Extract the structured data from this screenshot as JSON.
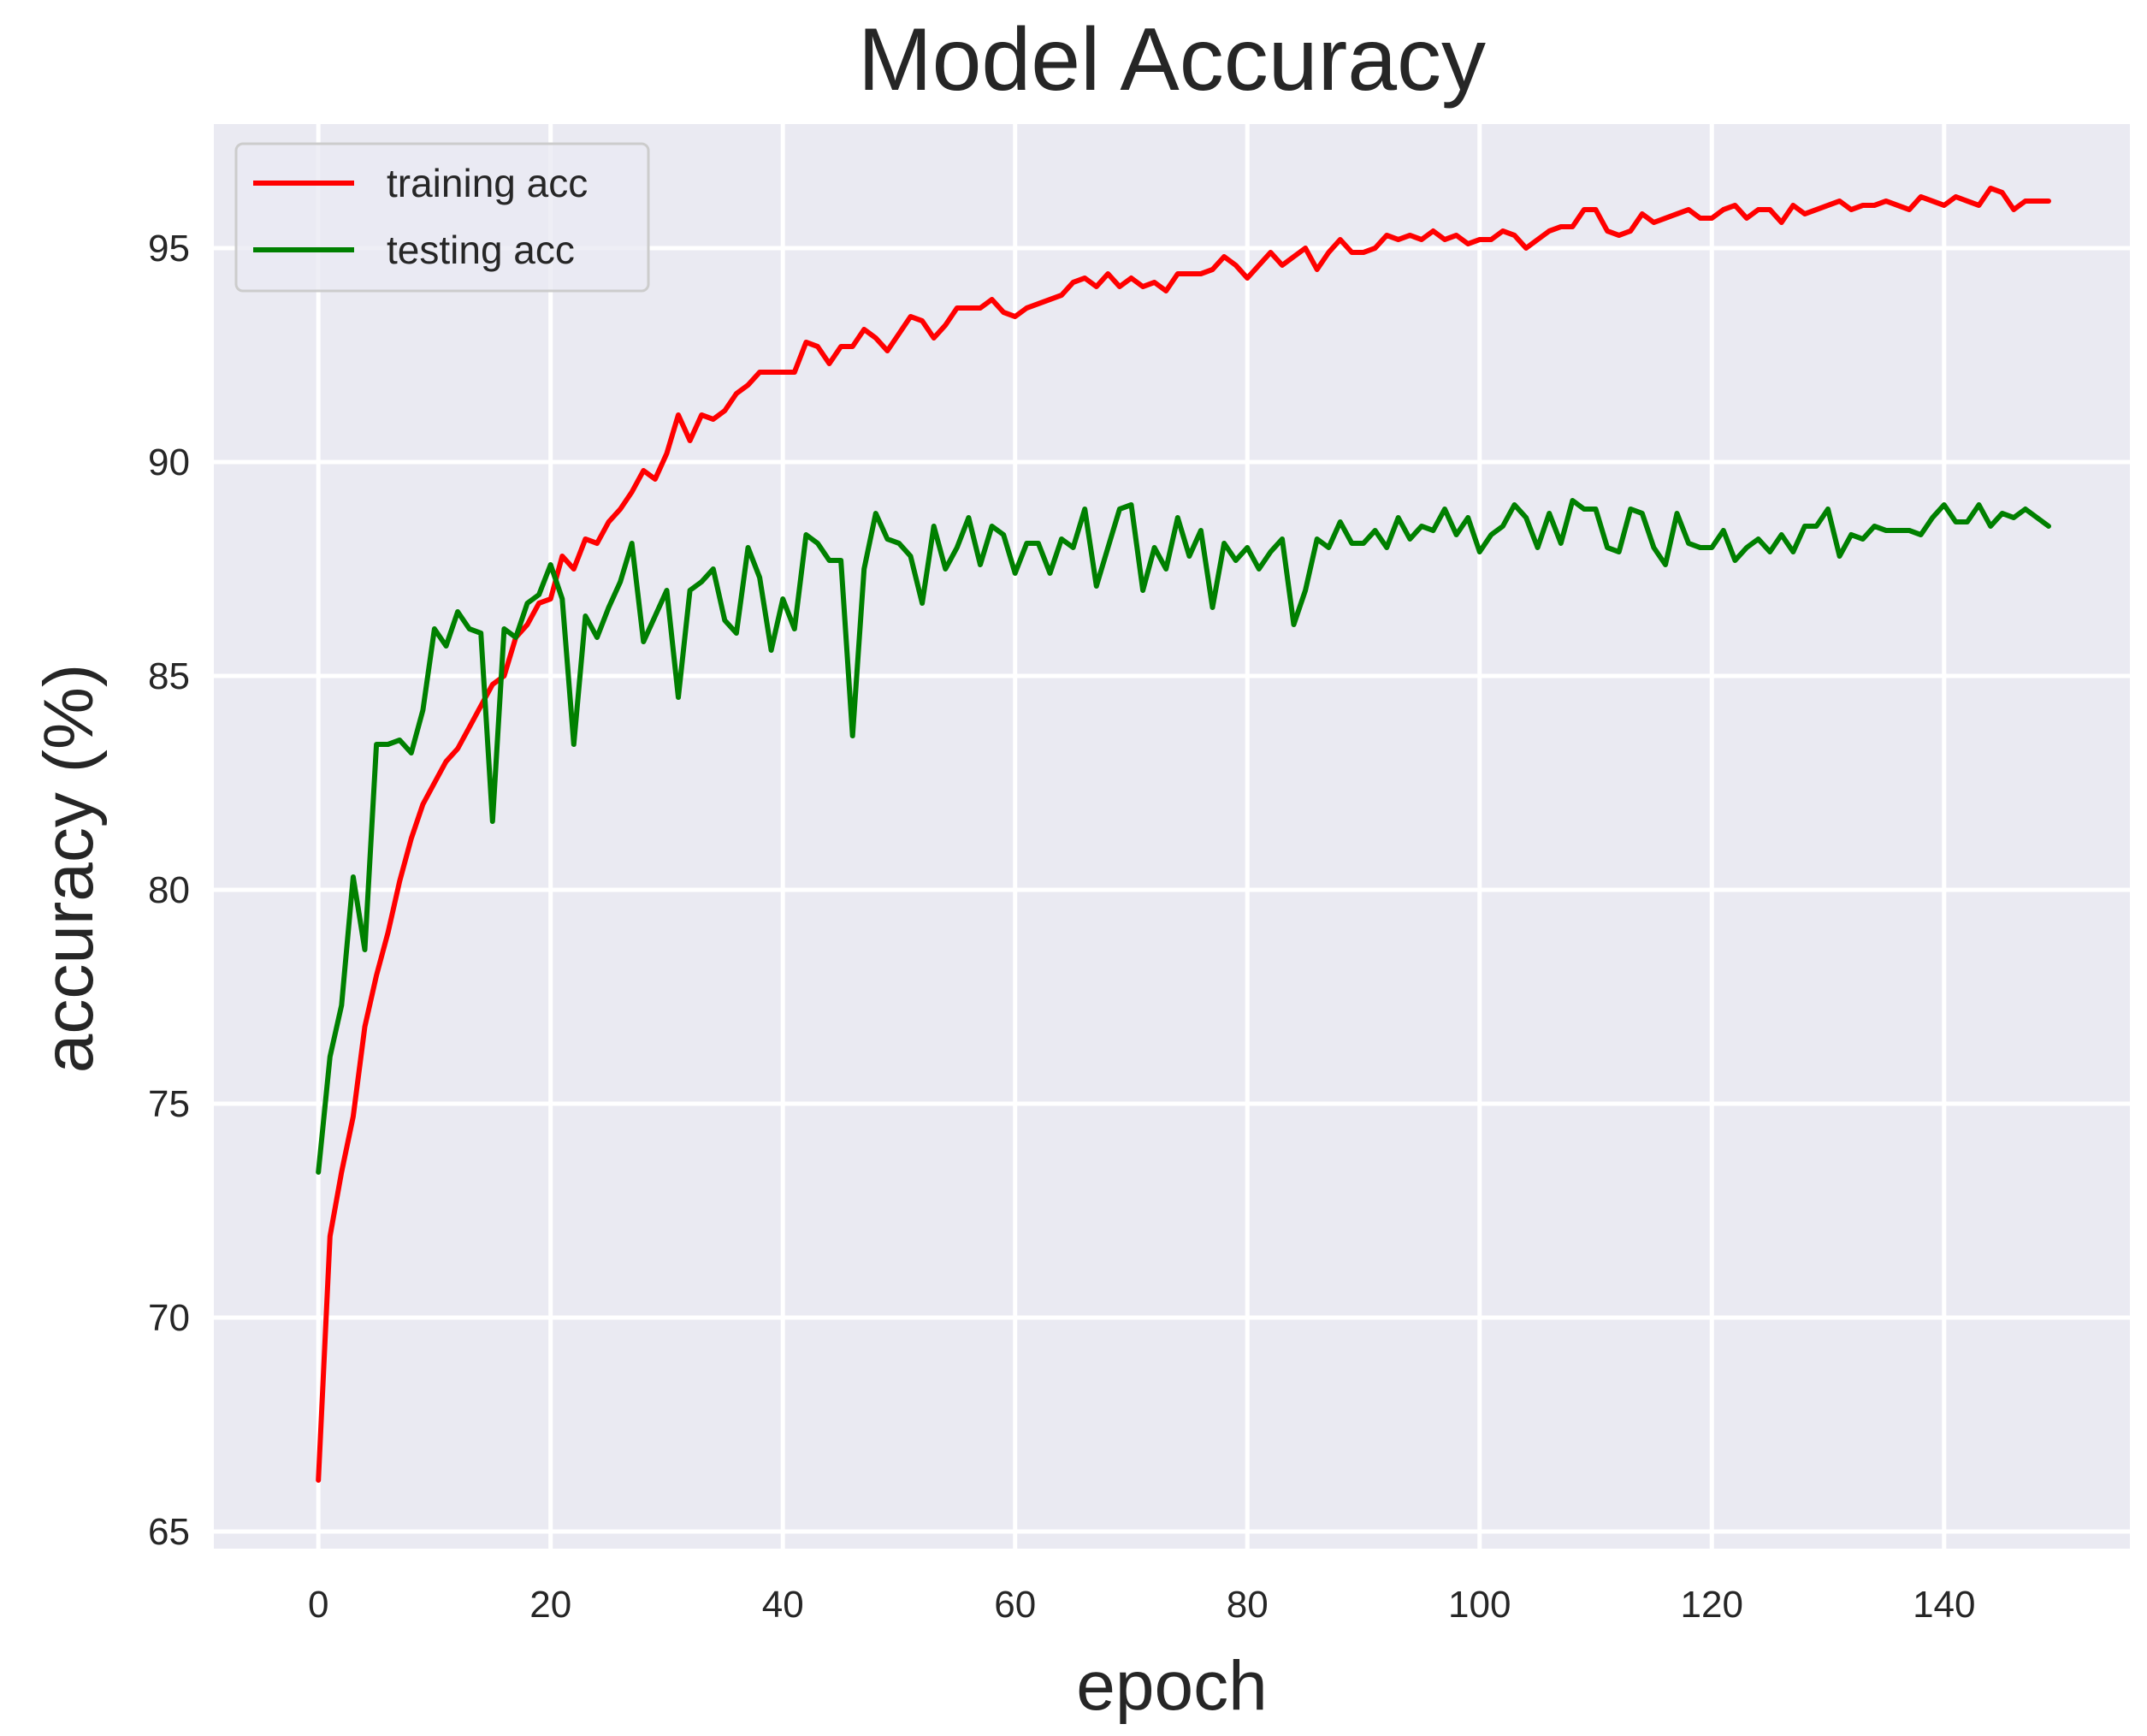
{
  "chart_data": {
    "type": "line",
    "title": "Model Accuracy",
    "xlabel": "epoch",
    "ylabel": "accuracy (%)",
    "xlim": [
      -9,
      156
    ],
    "ylim": [
      64.6,
      97.9
    ],
    "xticks": [
      0,
      20,
      40,
      60,
      80,
      100,
      120,
      140
    ],
    "yticks": [
      65,
      70,
      75,
      80,
      85,
      90,
      95
    ],
    "grid": true,
    "background": "#eaeaf2",
    "legend_position": "upper-left",
    "x": [
      0,
      1,
      2,
      3,
      4,
      5,
      6,
      7,
      8,
      9,
      10,
      11,
      12,
      13,
      14,
      15,
      16,
      17,
      18,
      19,
      20,
      21,
      22,
      23,
      24,
      25,
      26,
      27,
      28,
      29,
      30,
      31,
      32,
      33,
      34,
      35,
      36,
      37,
      38,
      39,
      40,
      41,
      42,
      43,
      44,
      45,
      46,
      47,
      48,
      49,
      50,
      51,
      52,
      53,
      54,
      55,
      56,
      57,
      58,
      59,
      60,
      61,
      62,
      63,
      64,
      65,
      66,
      67,
      68,
      69,
      70,
      71,
      72,
      73,
      74,
      75,
      76,
      77,
      78,
      79,
      80,
      81,
      82,
      83,
      84,
      85,
      86,
      87,
      88,
      89,
      90,
      91,
      92,
      93,
      94,
      95,
      96,
      97,
      98,
      99,
      100,
      101,
      102,
      103,
      104,
      105,
      106,
      107,
      108,
      109,
      110,
      111,
      112,
      113,
      114,
      115,
      116,
      117,
      118,
      119,
      120,
      121,
      122,
      123,
      124,
      125,
      126,
      127,
      128,
      129,
      130,
      131,
      132,
      133,
      134,
      135,
      136,
      137,
      138,
      139,
      140,
      141,
      142,
      143,
      144,
      145,
      146,
      147,
      148,
      149
    ],
    "series": [
      {
        "name": "training acc",
        "color": "#ff0000",
        "values": [
          66.2,
          71.9,
          73.4,
          74.7,
          76.8,
          78.0,
          79.0,
          80.2,
          81.2,
          82.0,
          82.5,
          83.0,
          83.3,
          83.8,
          84.3,
          84.8,
          85.0,
          85.9,
          86.2,
          86.7,
          86.8,
          87.8,
          87.5,
          88.2,
          88.1,
          88.6,
          88.9,
          89.3,
          89.8,
          89.6,
          90.2,
          91.1,
          90.5,
          91.1,
          91.0,
          91.2,
          91.6,
          91.8,
          92.1,
          92.1,
          92.1,
          92.1,
          92.8,
          92.7,
          92.3,
          92.7,
          92.7,
          93.1,
          92.9,
          92.6,
          93.0,
          93.4,
          93.3,
          92.9,
          93.2,
          93.6,
          93.6,
          93.6,
          93.8,
          93.5,
          93.4,
          93.6,
          93.7,
          93.8,
          93.9,
          94.2,
          94.3,
          94.1,
          94.4,
          94.1,
          94.3,
          94.1,
          94.2,
          94.0,
          94.4,
          94.4,
          94.4,
          94.5,
          94.8,
          94.6,
          94.3,
          94.6,
          94.9,
          94.6,
          94.8,
          95.0,
          94.5,
          94.9,
          95.2,
          94.9,
          94.9,
          95.0,
          95.3,
          95.2,
          95.3,
          95.2,
          95.4,
          95.2,
          95.3,
          95.1,
          95.2,
          95.2,
          95.4,
          95.3,
          95.0,
          95.2,
          95.4,
          95.5,
          95.5,
          95.9,
          95.9,
          95.4,
          95.3,
          95.4,
          95.8,
          95.6,
          95.7,
          95.8,
          95.9,
          95.7,
          95.7,
          95.9,
          96.0,
          95.7,
          95.9,
          95.9,
          95.6,
          96.0,
          95.8,
          95.9,
          96.0,
          96.1,
          95.9,
          96.0,
          96.0,
          96.1,
          96.0,
          95.9,
          96.2,
          96.1,
          96.0,
          96.2,
          96.1,
          96.0,
          96.4,
          96.3,
          95.9,
          96.1,
          96.1,
          96.1
        ]
      },
      {
        "name": "testing acc",
        "color": "#008000",
        "values": [
          73.4,
          76.1,
          77.3,
          80.3,
          78.6,
          83.4,
          83.4,
          83.5,
          83.2,
          84.2,
          86.1,
          85.7,
          86.5,
          86.1,
          86.0,
          81.6,
          86.1,
          85.9,
          86.7,
          86.9,
          87.6,
          86.8,
          83.4,
          86.4,
          85.9,
          86.6,
          87.2,
          88.1,
          85.8,
          86.4,
          87.0,
          84.5,
          87.0,
          87.2,
          87.5,
          86.3,
          86.0,
          88.0,
          87.3,
          85.6,
          86.8,
          86.1,
          88.3,
          88.1,
          87.7,
          87.7,
          83.6,
          87.5,
          88.8,
          88.2,
          88.1,
          87.8,
          86.7,
          88.5,
          87.5,
          88.0,
          88.7,
          87.6,
          88.5,
          88.3,
          87.4,
          88.1,
          88.1,
          87.4,
          88.2,
          88.0,
          88.9,
          87.1,
          88.0,
          88.9,
          89.0,
          87.0,
          88.0,
          87.5,
          88.7,
          87.8,
          88.4,
          86.6,
          88.1,
          87.7,
          88.0,
          87.5,
          87.9,
          88.2,
          86.2,
          87.0,
          88.2,
          88.0,
          88.6,
          88.1,
          88.1,
          88.4,
          88.0,
          88.7,
          88.2,
          88.5,
          88.4,
          88.9,
          88.3,
          88.7,
          87.9,
          88.3,
          88.5,
          89.0,
          88.7,
          88.0,
          88.8,
          88.1,
          89.1,
          88.9,
          88.9,
          88.0,
          87.9,
          88.9,
          88.8,
          88.0,
          87.6,
          88.8,
          88.1,
          88.0,
          88.0,
          88.4,
          87.7,
          88.0,
          88.2,
          87.9,
          88.3,
          87.9,
          88.5,
          88.5,
          88.9,
          87.8,
          88.3,
          88.2,
          88.5,
          88.4,
          88.4,
          88.4,
          88.3,
          88.7,
          89.0,
          88.6,
          88.6,
          89.0,
          88.5,
          88.8,
          88.7,
          88.9,
          88.7,
          88.5
        ]
      }
    ]
  }
}
